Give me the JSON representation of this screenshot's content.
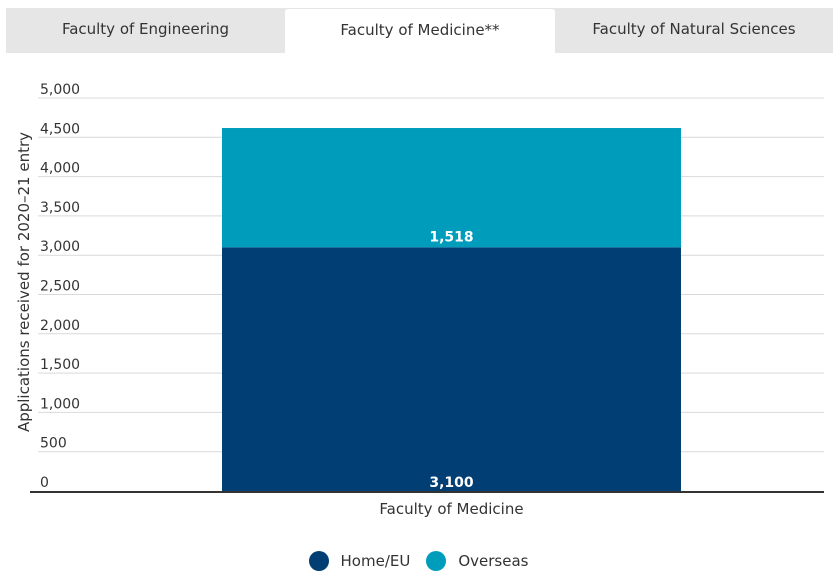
{
  "tabs": [
    {
      "label": "Faculty of Engineering",
      "active": false
    },
    {
      "label": "Faculty of Medicine**",
      "active": true
    },
    {
      "label": "Faculty of Natural Sciences",
      "active": false
    }
  ],
  "colors": {
    "home_eu": "#003e74",
    "overseas": "#009cbc",
    "grid": "#d9d9d9",
    "axis": "#333333",
    "tab_bg": "#e6e6e6"
  },
  "chart_data": {
    "type": "bar",
    "stacked": true,
    "title": "",
    "xlabel": "",
    "ylabel": "Applications received for 2020–21 entry",
    "categories": [
      "Faculty of Medicine"
    ],
    "series": [
      {
        "name": "Home/EU",
        "values": [
          3100
        ],
        "labels": [
          "3,100"
        ]
      },
      {
        "name": "Overseas",
        "values": [
          1518
        ],
        "labels": [
          "1,518"
        ]
      }
    ],
    "ylim": [
      0,
      5000
    ],
    "yticks": [
      0,
      500,
      1000,
      1500,
      2000,
      2500,
      3000,
      3500,
      4000,
      4500,
      5000
    ],
    "ytick_labels": [
      "0",
      "500",
      "1,000",
      "1,500",
      "2,000",
      "2,500",
      "3,000",
      "3,500",
      "4,000",
      "4,500",
      "5,000"
    ],
    "grid": true,
    "legend": "bottom-center"
  },
  "legend": {
    "home_label": "Home/EU",
    "overseas_label": "Overseas"
  }
}
